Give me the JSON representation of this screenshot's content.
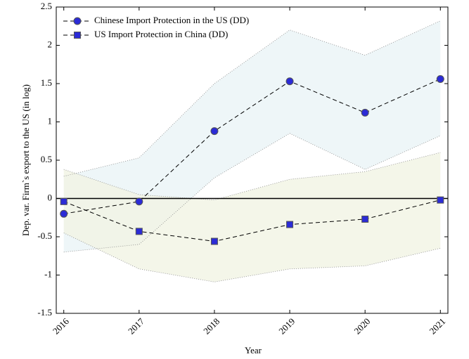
{
  "chart_data": {
    "type": "line",
    "xlabel": "Year",
    "ylabel": "Dep. var. Firm`s export to the US (in log)",
    "x": [
      2016,
      2017,
      2018,
      2019,
      2020,
      2021
    ],
    "xlim": [
      2015.9,
      2021.1
    ],
    "xticks": [
      2016,
      2017,
      2018,
      2019,
      2020,
      2021
    ],
    "ylim": [
      -1.5,
      2.5
    ],
    "yticks": [
      2.5,
      2,
      1.5,
      1,
      0.5,
      0,
      -0.5,
      -1,
      -1.5
    ],
    "reference_line": 0,
    "legend": "upper left",
    "series": [
      {
        "name": "Chinese Import Protection in the US (DD)",
        "color": "#2b2bd6",
        "marker": "circle",
        "band_color": "#eaf4f6",
        "values": [
          -0.2,
          -0.04,
          0.88,
          1.53,
          1.12,
          1.56
        ],
        "lower": [
          -0.7,
          -0.6,
          0.27,
          0.85,
          0.38,
          0.82
        ],
        "upper": [
          0.29,
          0.53,
          1.5,
          2.2,
          1.87,
          2.32
        ]
      },
      {
        "name": "US Import Protection in China (DD)",
        "color": "#2b2bd6",
        "marker": "square",
        "band_color": "#f1f4e4",
        "values": [
          -0.04,
          -0.43,
          -0.56,
          -0.34,
          -0.27,
          -0.02
        ],
        "lower": [
          -0.45,
          -0.92,
          -1.09,
          -0.92,
          -0.88,
          -0.65
        ],
        "upper": [
          0.38,
          0.05,
          -0.02,
          0.25,
          0.35,
          0.6
        ]
      }
    ]
  }
}
